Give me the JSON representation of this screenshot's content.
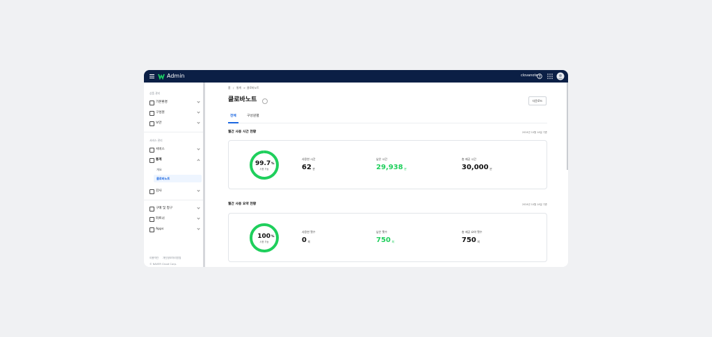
{
  "header": {
    "title": "Admin",
    "service": "clovanote"
  },
  "sidebar": {
    "sections": [
      {
        "label": "상품 관리",
        "items": [
          "기본환경",
          "구성원",
          "보안"
        ]
      },
      {
        "label": "서비스 관리",
        "items": [
          "서비스",
          "통계",
          "감사"
        ],
        "subitems": [
          "개요",
          "클로바노트"
        ]
      },
      {
        "items": [
          "구매 및 청구",
          "파트너",
          "Apps"
        ]
      }
    ],
    "footer": {
      "links": [
        "이용약관",
        "개인정보처리방침"
      ],
      "copyright": "© NAVER Cloud Corp."
    }
  },
  "content": {
    "breadcrumb": {
      "items": [
        "홈",
        "통계",
        "클로바노트"
      ],
      "separators": [
        "/",
        ">"
      ]
    },
    "title": "클로바노트",
    "download": "다운로드",
    "tabs": [
      "전체",
      "구성원별"
    ],
    "panels": [
      {
        "title": "월간 사용 시간 현황",
        "date": "2024년 10월 14일 기준",
        "ring": {
          "percent": 99.7,
          "unit": "%",
          "caption": "사용 가능"
        },
        "stats": [
          {
            "label": "사용한 시간",
            "value": "62",
            "unit": "분"
          },
          {
            "label": "남은 시간",
            "value": "29,938",
            "unit": "분"
          },
          {
            "label": "총 제공 시간",
            "value": "30,000",
            "unit": "분"
          }
        ]
      },
      {
        "title": "월간 사용 요약 현황",
        "date": "2024년 10월 14일 기준",
        "ring": {
          "percent": 100,
          "unit": "%",
          "caption": "사용 가능"
        },
        "stats": [
          {
            "label": "사용한 횟수",
            "value": "0",
            "unit": "회"
          },
          {
            "label": "남은 횟수",
            "value": "750",
            "unit": "회"
          },
          {
            "label": "총 제공 요약 횟수",
            "value": "750",
            "unit": "회"
          }
        ]
      }
    ]
  }
}
